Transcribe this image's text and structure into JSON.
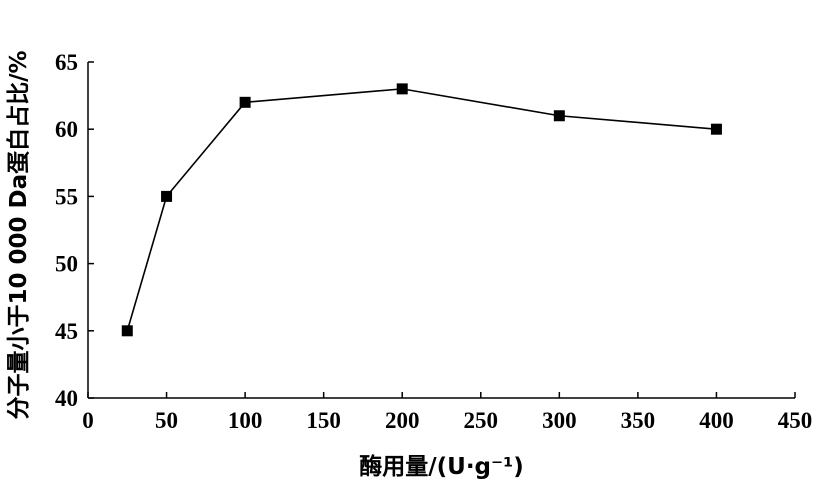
{
  "chart_data": {
    "type": "line",
    "title": "",
    "xlabel": "酶用量/(U·g⁻¹)",
    "ylabel": "分子量小于10 000 Da蛋白占比/%",
    "xlim": [
      0,
      450
    ],
    "ylim": [
      40,
      65
    ],
    "x_ticks": [
      0,
      50,
      100,
      150,
      200,
      250,
      300,
      350,
      400,
      450
    ],
    "y_ticks": [
      40,
      45,
      50,
      55,
      60,
      65
    ],
    "grid": false,
    "legend": "none",
    "series": [
      {
        "marker": "square",
        "color": "#000000",
        "x": [
          25,
          50,
          100,
          200,
          300,
          400
        ],
        "y": [
          45,
          55,
          62,
          63,
          61,
          60
        ]
      }
    ]
  }
}
